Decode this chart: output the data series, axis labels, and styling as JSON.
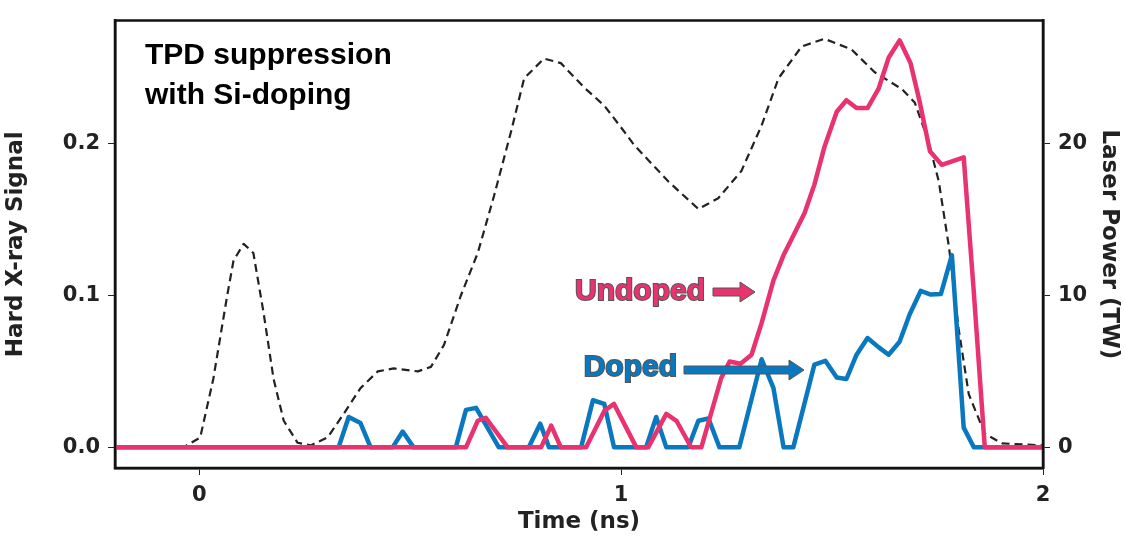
{
  "chart_data": {
    "type": "line",
    "title": "TPD suppression with Si-doping",
    "xlabel": "Time (ns)",
    "ylabel": "Hard X-ray Signal",
    "y2label": "Laser Power (TW)",
    "xlim": [
      -0.2,
      2
    ],
    "xticks": [
      0,
      1,
      2
    ],
    "ylim": [
      -0.0136,
      0.281
    ],
    "yticks": [
      {
        "value": 0,
        "label": "0.0"
      },
      {
        "value": 0.1,
        "label": "0.1"
      },
      {
        "value": 0.2,
        "label": "0.2"
      }
    ],
    "y2lim": [
      -1.36,
      28.1
    ],
    "y2ticks": [
      0,
      10,
      20
    ],
    "grid": false,
    "legend": "center",
    "marker": "none",
    "series": [
      {
        "name": "Undoped",
        "color": "#e8336f",
        "x": [
          -0.2,
          0.632,
          0.66,
          0.679,
          0.731,
          0.81,
          0.834,
          0.857,
          0.917,
          0.96,
          0.983,
          1.036,
          1.064,
          1.107,
          1.131,
          1.166,
          1.19,
          1.237,
          1.257,
          1.283,
          1.309,
          1.333,
          1.361,
          1.385,
          1.411,
          1.435,
          1.458,
          1.482,
          1.511,
          1.534,
          1.558,
          1.584,
          1.61,
          1.634,
          1.66,
          1.686,
          1.708,
          1.732,
          1.76,
          1.812,
          1.836,
          1.862,
          2
        ],
        "values": [
          0,
          0,
          0.0175,
          0.0195,
          0,
          0,
          0.0143,
          0,
          0,
          0.024,
          0.0286,
          0,
          0,
          0.022,
          0.0175,
          0,
          0,
          0.0455,
          0.0565,
          0.055,
          0.061,
          0.082,
          0.11,
          0.1266,
          0.141,
          0.1545,
          0.173,
          0.198,
          0.221,
          0.2286,
          0.2234,
          0.2234,
          0.236,
          0.2565,
          0.268,
          0.253,
          0.227,
          0.195,
          0.186,
          0.191,
          0.102,
          0,
          0
        ]
      },
      {
        "name": "Doped",
        "color": "#0a78be",
        "x": [
          -0.2,
          0.33,
          0.354,
          0.382,
          0.406,
          0.458,
          0.482,
          0.508,
          0.608,
          0.632,
          0.656,
          0.71,
          0.781,
          0.808,
          0.829,
          0.905,
          0.933,
          0.96,
          0.983,
          1.059,
          1.083,
          1.107,
          1.159,
          1.183,
          1.207,
          1.233,
          1.28,
          1.333,
          1.361,
          1.385,
          1.408,
          1.458,
          1.484,
          1.511,
          1.534,
          1.558,
          1.584,
          1.61,
          1.634,
          1.66,
          1.684,
          1.71,
          1.734,
          1.758,
          1.784,
          1.812,
          1.836,
          2
        ],
        "values": [
          0,
          0,
          0.02,
          0.016,
          0,
          0,
          0.0104,
          0,
          0,
          0.0247,
          0.026,
          0,
          0,
          0.0156,
          0,
          0,
          0.031,
          0.0286,
          0,
          0,
          0.02,
          0,
          0,
          0.0175,
          0.019,
          0,
          0,
          0.058,
          0.039,
          0,
          0,
          0.0545,
          0.057,
          0.046,
          0.045,
          0.061,
          0.072,
          0.066,
          0.061,
          0.0695,
          0.0876,
          0.103,
          0.1006,
          0.101,
          0.1266,
          0.013,
          0,
          0
        ]
      },
      {
        "color": "#222222",
        "axis": "y2",
        "line_style": "dashed",
        "x": [
          -0.2,
          -0.038,
          0.002,
          0.033,
          0.066,
          0.081,
          0.105,
          0.128,
          0.152,
          0.176,
          0.2,
          0.233,
          0.264,
          0.304,
          0.342,
          0.382,
          0.423,
          0.461,
          0.518,
          0.549,
          0.58,
          0.62,
          0.66,
          0.698,
          0.739,
          0.77,
          0.817,
          0.857,
          0.912,
          0.96,
          1.007,
          1.031,
          1.112,
          1.183,
          1.23,
          1.285,
          1.333,
          1.373,
          1.428,
          1.482,
          1.546,
          1.601,
          1.665,
          1.696,
          1.729,
          1.753,
          1.777,
          1.8,
          1.824,
          1.862,
          1.903,
          2
        ],
        "values": [
          0,
          0,
          0.65,
          4.5,
          10,
          12.3,
          13.4,
          12.8,
          8.9,
          4.5,
          1.75,
          0.3,
          0.13,
          0.65,
          2.2,
          3.9,
          5,
          5.2,
          5,
          5.3,
          6.75,
          10,
          12.8,
          16.5,
          20.8,
          24.3,
          25.6,
          25.3,
          23.7,
          22.5,
          20.8,
          19.9,
          17.5,
          15.7,
          16.4,
          18.2,
          21.2,
          24.3,
          26.4,
          26.9,
          26.2,
          24.7,
          23.6,
          22.7,
          20.1,
          17.5,
          13.2,
          7.8,
          3.5,
          0.9,
          0.26,
          0.13
        ]
      }
    ]
  }
}
